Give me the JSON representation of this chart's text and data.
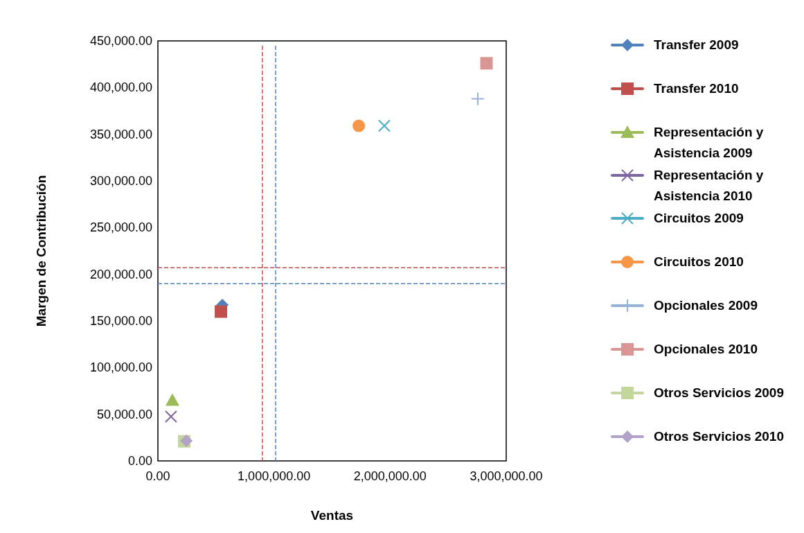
{
  "chart_data": {
    "type": "scatter",
    "xlabel": "Ventas",
    "ylabel": "Margen de Contribución",
    "xlim": [
      0,
      3000000
    ],
    "ylim": [
      0,
      450000
    ],
    "xticks": [
      {
        "value": 0,
        "label": "0.00"
      },
      {
        "value": 1000000,
        "label": "1,000,000.00"
      },
      {
        "value": 2000000,
        "label": "2,000,000.00"
      },
      {
        "value": 3000000,
        "label": "3,000,000.00"
      }
    ],
    "yticks": [
      {
        "value": 0,
        "label": "0.00"
      },
      {
        "value": 50000,
        "label": "50,000.00"
      },
      {
        "value": 100000,
        "label": "100,000.00"
      },
      {
        "value": 150000,
        "label": "150,000.00"
      },
      {
        "value": 200000,
        "label": "200,000.00"
      },
      {
        "value": 250000,
        "label": "250,000.00"
      },
      {
        "value": 300000,
        "label": "300,000.00"
      },
      {
        "value": 350000,
        "label": "350,000.00"
      },
      {
        "value": 400000,
        "label": "400,000.00"
      },
      {
        "value": 450000,
        "label": "450,000.00"
      }
    ],
    "grid": false,
    "legend": "right",
    "series": [
      {
        "name": "Transfer 2009",
        "color": "#4f81bd",
        "marker": "diamond",
        "x": [
          555000
        ],
        "values": [
          167000
        ]
      },
      {
        "name": "Transfer 2010",
        "color": "#c0504d",
        "marker": "square",
        "x": [
          543000
        ],
        "values": [
          160000
        ]
      },
      {
        "name": "Representación y Asistencia 2009",
        "color": "#9bbb59",
        "marker": "triangle",
        "x": [
          125000
        ],
        "values": [
          65000
        ]
      },
      {
        "name": "Representación y Asistencia 2010",
        "color": "#8064a2",
        "marker": "cross",
        "x": [
          113000
        ],
        "values": [
          47500
        ]
      },
      {
        "name": "Circuitos 2009",
        "color": "#4bacc6",
        "marker": "cross",
        "x": [
          1950000
        ],
        "values": [
          359000
        ]
      },
      {
        "name": "Circuitos 2010",
        "color": "#f79646",
        "marker": "circle",
        "x": [
          1730000
        ],
        "values": [
          359000
        ]
      },
      {
        "name": "Opcionales 2009",
        "color": "#95b3d7",
        "marker": "plus",
        "x": [
          2755000
        ],
        "values": [
          388000
        ]
      },
      {
        "name": "Opcionales 2010",
        "color": "#d99694",
        "marker": "square",
        "x": [
          2830000
        ],
        "values": [
          426000
        ]
      },
      {
        "name": "Otros Servicios 2009",
        "color": "#c3d69b",
        "marker": "square",
        "x": [
          227000
        ],
        "values": [
          21000
        ]
      },
      {
        "name": "Otros Servicios 2010",
        "color": "#b2a2c7",
        "marker": "diamond",
        "x": [
          245000
        ],
        "values": [
          21500
        ]
      }
    ],
    "ref_lines": [
      {
        "axis": "x",
        "value": 900000,
        "color": "#c0504d",
        "line_style": "dashed"
      },
      {
        "axis": "x",
        "value": 1014000,
        "color": "#4f81bd",
        "line_style": "dashed"
      },
      {
        "axis": "y",
        "value": 207000,
        "color": "#c0504d",
        "line_style": "dashed"
      },
      {
        "axis": "y",
        "value": 190000,
        "color": "#4f81bd",
        "line_style": "dashed"
      }
    ]
  }
}
